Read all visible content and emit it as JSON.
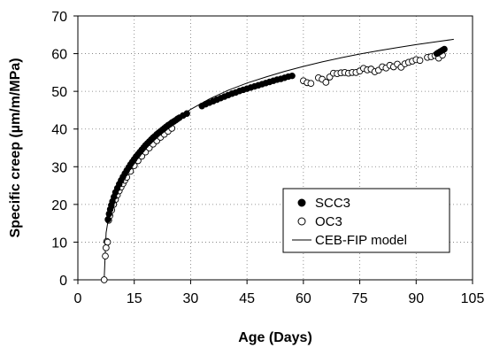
{
  "chart_data": {
    "type": "scatter",
    "title": "",
    "xlabel": "Age (Days)",
    "ylabel": "Specific creep (µm/m/MPa)",
    "xlim": [
      0,
      105
    ],
    "ylim": [
      0,
      70
    ],
    "xticks": [
      "0",
      "15",
      "30",
      "45",
      "60",
      "75",
      "90",
      "105"
    ],
    "yticks": [
      "0",
      "10",
      "20",
      "30",
      "40",
      "50",
      "60",
      "70"
    ],
    "grid": "dotted",
    "legend_position": "lower-right",
    "series": [
      {
        "name": "SCC3",
        "marker": "filled-circle",
        "color": "#000000",
        "x": [
          8.0,
          8.3,
          8.6,
          8.9,
          9.2,
          9.6,
          10.0,
          10.5,
          11.0,
          11.5,
          12.0,
          12.5,
          13.0,
          13.5,
          14.0,
          14.5,
          15.0,
          15.5,
          16.0,
          16.5,
          17.0,
          17.5,
          18.0,
          18.5,
          19.0,
          19.5,
          20.0,
          20.5,
          21.0,
          21.5,
          22.0,
          22.5,
          23.0,
          23.5,
          24.0,
          24.5,
          25.0,
          25.5,
          26.0,
          26.5,
          27.0,
          28.0,
          29.0,
          33.0,
          34.0,
          35.0,
          36.0,
          37.0,
          38.0,
          39.0,
          40.0,
          41.0,
          42.0,
          43.0,
          44.0,
          45.0,
          46.0,
          47.0,
          48.0,
          49.0,
          50.0,
          51.0,
          52.0,
          53.0,
          54.0,
          55.0,
          56.0,
          57.0,
          95.5,
          96.0,
          96.5,
          97.0,
          97.5
        ],
        "y": [
          16.0,
          17.5,
          18.7,
          19.8,
          20.8,
          22.0,
          23.2,
          24.3,
          25.4,
          26.4,
          27.3,
          28.2,
          29.0,
          29.8,
          30.6,
          31.3,
          32.0,
          32.7,
          33.3,
          33.9,
          34.5,
          35.1,
          35.7,
          36.2,
          36.7,
          37.2,
          37.7,
          38.1,
          38.6,
          39.0,
          39.4,
          39.8,
          40.2,
          40.6,
          41.0,
          41.3,
          41.7,
          42.0,
          42.3,
          42.7,
          43.0,
          43.6,
          44.1,
          46.1,
          46.6,
          47.0,
          47.4,
          47.8,
          48.2,
          48.6,
          49.0,
          49.4,
          49.7,
          50.1,
          50.4,
          50.7,
          51.0,
          51.3,
          51.6,
          51.9,
          52.2,
          52.5,
          52.8,
          53.1,
          53.3,
          53.6,
          53.9,
          54.1,
          60.0,
          60.3,
          60.6,
          60.9,
          61.2
        ]
      },
      {
        "name": "OC3",
        "marker": "open-circle",
        "color": "#000000",
        "x": [
          7.0,
          7.3,
          7.5,
          7.7,
          7.9,
          8.2,
          8.5,
          9.0,
          9.5,
          10.0,
          10.5,
          11.0,
          11.5,
          12.0,
          12.5,
          13.0,
          14.0,
          15.0,
          16.0,
          17.0,
          18.0,
          19.0,
          20.0,
          21.0,
          22.0,
          23.0,
          24.0,
          25.0,
          60.0,
          61.0,
          62.0,
          64.0,
          65.0,
          66.0,
          67.0,
          68.0,
          69.0,
          70.0,
          71.0,
          72.0,
          73.0,
          74.0,
          75.0,
          76.0,
          77.0,
          78.0,
          79.0,
          80.0,
          81.0,
          82.0,
          83.0,
          84.0,
          85.0,
          86.0,
          87.0,
          88.0,
          89.0,
          90.0,
          91.0,
          93.0,
          94.0,
          95.0,
          96.0,
          97.0
        ],
        "y": [
          0.0,
          6.3,
          8.5,
          10.2,
          10.0,
          15.8,
          17.0,
          18.5,
          20.0,
          21.3,
          22.5,
          23.6,
          24.6,
          25.5,
          26.4,
          27.2,
          28.8,
          30.3,
          31.6,
          32.8,
          33.9,
          35.0,
          36.0,
          36.9,
          37.8,
          38.6,
          39.4,
          40.2,
          52.8,
          52.3,
          52.1,
          53.6,
          53.2,
          52.4,
          53.8,
          54.8,
          54.7,
          54.9,
          55.0,
          54.8,
          55.0,
          55.0,
          55.4,
          56.1,
          55.7,
          55.9,
          55.2,
          55.6,
          56.5,
          56.2,
          56.9,
          56.5,
          57.2,
          56.4,
          57.3,
          57.7,
          58.0,
          58.4,
          58.2,
          59.0,
          59.2,
          59.5,
          58.8,
          59.6
        ]
      },
      {
        "name": "CEB-FIP model",
        "marker": "line",
        "color": "#000000",
        "x": [
          7,
          7.5,
          8,
          9,
          10,
          12,
          15,
          20,
          25,
          30,
          35,
          40,
          45,
          50,
          55,
          60,
          65,
          70,
          75,
          80,
          85,
          90,
          95,
          100
        ],
        "y": [
          0,
          12.5,
          15.5,
          19.5,
          22.6,
          27.0,
          31.8,
          37.5,
          41.8,
          45.2,
          48.0,
          50.3,
          52.2,
          53.8,
          55.3,
          56.6,
          57.8,
          58.9,
          59.9,
          60.8,
          61.6,
          62.4,
          63.1,
          63.8
        ]
      }
    ]
  }
}
